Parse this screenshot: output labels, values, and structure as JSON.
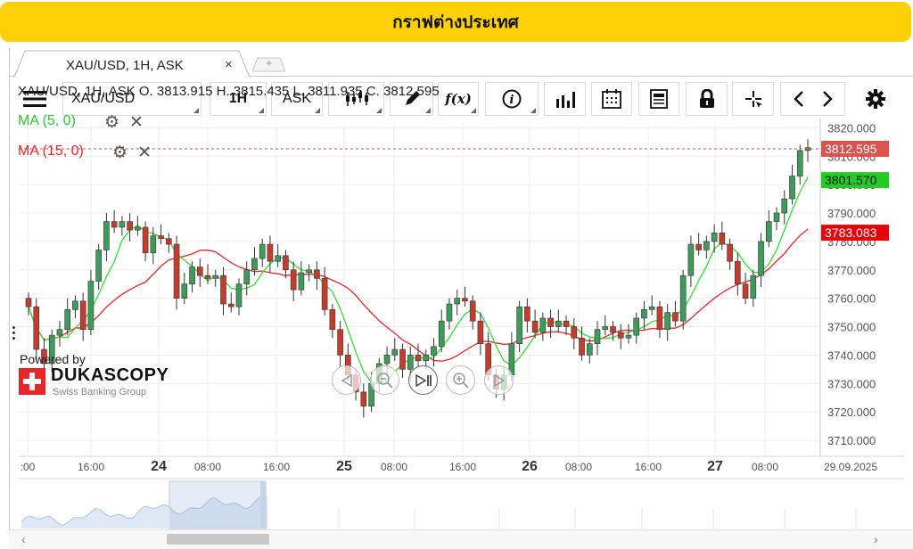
{
  "banner": {
    "title": "กราฟต่างประเทศ",
    "color": "#fdd106"
  },
  "tab": {
    "label": "XAU/USD, 1H, ASK",
    "close": "×",
    "add": "+"
  },
  "toolbar": {
    "menu_icon": "hamburger-menu-icon",
    "instrument": "XAU/USD",
    "period": "1H",
    "side": "ASK",
    "candle_icon": "candlestick-icon",
    "draw_icon": "pencil-icon",
    "indicator_label": "f(x)",
    "info_label": "i",
    "volume_icon": "volume-bars-icon",
    "calendar_icon": "calendar-icon",
    "news_icon": "news-icon",
    "lock_icon": "lock-icon",
    "crosshair_icon": "crosshair-icon",
    "prev_label": "‹",
    "next_label": "›",
    "settings_icon": "gear-icon"
  },
  "info": {
    "ohlc": "XAU/USD, 1H, ASK   O. 3813.915 H. 3815.435 L. 3811.935 C. 3812.595",
    "ma5_label": "MA (5, 0)",
    "ma15_label": "MA (15, 0)"
  },
  "branding": {
    "powered_by": "Powered by",
    "logo_name": "DUKASCOPY",
    "logo_sub": "Swiss Banking Group"
  },
  "colors": {
    "up": "#3f9a5b",
    "down": "#c43c2d",
    "ma5": "#33dd33",
    "ma15": "#e8262a",
    "last": "#d9534f",
    "grid": "#ececec"
  },
  "chart_data": {
    "type": "candlestick",
    "instrument": "XAU/USD",
    "timeframe": "1H",
    "ylim": [
      3705,
      3822
    ],
    "yticks": [
      "3820.000",
      "3810.000",
      "3800.000",
      "3790.000",
      "3780.000",
      "3770.000",
      "3760.000",
      "3750.000",
      "3740.000",
      "3730.000",
      "3720.000",
      "3710.000"
    ],
    "xticks": [
      ":00",
      "16:00",
      "24",
      "08:00",
      "16:00",
      "25",
      "08:00",
      "16:00",
      "26",
      "08:00",
      "16:00",
      "27",
      "08:00",
      "29.09.2025"
    ],
    "price_labels": {
      "last": "3812.595",
      "ma5": "3801.570",
      "ma15": "3783.083"
    },
    "last_close": 3812.595,
    "ma5_value": 3801.57,
    "ma15_value": 3783.083,
    "closes": [
      3757,
      3742,
      3737,
      3747,
      3749,
      3756,
      3759,
      3749,
      3766,
      3777,
      3787,
      3785,
      3787,
      3784,
      3785,
      3776,
      3782,
      3781,
      3779,
      3760,
      3765,
      3771,
      3768,
      3767,
      3768,
      3758,
      3757,
      3765,
      3770,
      3774,
      3779,
      3773,
      3775,
      3770,
      3763,
      3769,
      3770,
      3767,
      3756,
      3749,
      3740,
      3733,
      3727,
      3722,
      3730,
      3737,
      3740,
      3742,
      3735,
      3740,
      3738,
      3740,
      3743,
      3752,
      3758,
      3760,
      3759,
      3752,
      3744,
      3733,
      3728,
      3733,
      3744,
      3757,
      3752,
      3748,
      3753,
      3750,
      3752,
      3750,
      3746,
      3740,
      3744,
      3749,
      3750,
      3748,
      3746,
      3747,
      3753,
      3756,
      3757,
      3749,
      3755,
      3752,
      3768,
      3779,
      3777,
      3780,
      3783,
      3779,
      3773,
      3765,
      3760,
      3768,
      3780,
      3787,
      3790,
      3795,
      3803,
      3812,
      3813
    ]
  }
}
